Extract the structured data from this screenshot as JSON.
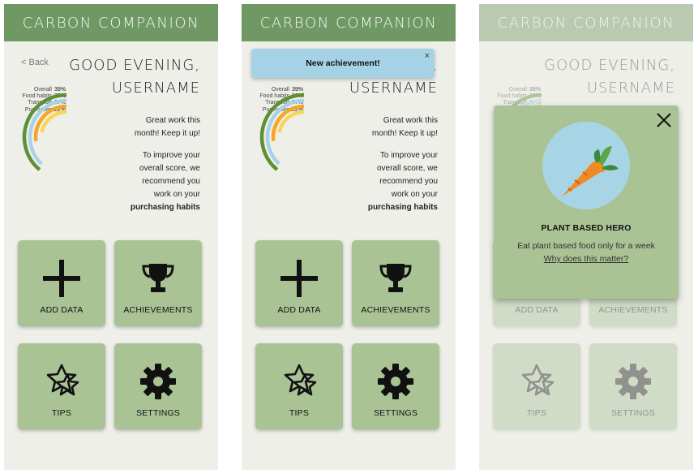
{
  "app": {
    "title": "CARBON COMPANION"
  },
  "nav": {
    "back": "< Back"
  },
  "greeting": {
    "line1": "GOOD EVENING,",
    "line2": "USERNAME"
  },
  "scores": [
    {
      "label": "Overall",
      "value": "39%",
      "fraction": 0.39,
      "color": "#5e9036"
    },
    {
      "label": "Food habits",
      "value": "38%",
      "fraction": 0.38,
      "color": "#a8d2e6"
    },
    {
      "label": "Transport",
      "value": "27%",
      "fraction": 0.27,
      "color": "#f5a623"
    },
    {
      "label": "Purchases",
      "value": "22%",
      "fraction": 0.22,
      "color": "#f9d55a"
    }
  ],
  "message": {
    "praise": "Great work this month! Keep it up!",
    "advice_prefix": "To improve your overall score, we recommend you work on your ",
    "advice_focus": "purchasing habits"
  },
  "tiles": {
    "add_data": "ADD DATA",
    "achievements": "ACHIEVEMENTS",
    "tips": "TIPS",
    "settings": "SETTINGS"
  },
  "toast": {
    "text": "New achievement!",
    "close": "×"
  },
  "achievement_popup": {
    "title": "PLANT BASED HERO",
    "description": "Eat plant based food only for a week",
    "link": "Why does this matter?"
  },
  "colors": {
    "header": "#6f9865",
    "tile": "#a9c395",
    "toast": "#a6d2e6",
    "background": "#efefea"
  }
}
